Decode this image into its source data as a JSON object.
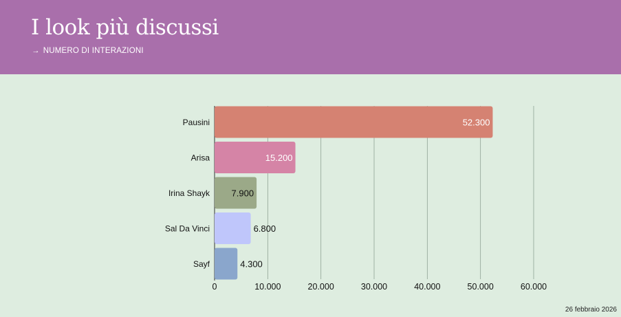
{
  "header": {
    "title": "I look più discussi",
    "subtitle_arrow": "→",
    "subtitle": "NUMERO DI INTERAZIONI"
  },
  "footer": {
    "date": "26 febbraio 2026"
  },
  "colors": {
    "header_bg": "#a96fab",
    "plot_bg": "#deede0",
    "grid": "#8fa394"
  },
  "chart_data": {
    "type": "bar",
    "orientation": "horizontal",
    "categories": [
      "Pausini",
      "Arisa",
      "Irina Shayk",
      "Sal Da Vinci",
      "Sayf"
    ],
    "values": [
      52300,
      15200,
      7900,
      6800,
      4300
    ],
    "value_labels": [
      "52.300",
      "15.200",
      "7.900",
      "6.800",
      "4.300"
    ],
    "bar_colors": [
      "#d58272",
      "#d584a6",
      "#9ba988",
      "#bfc6fb",
      "#8aa6cc"
    ],
    "xlim": [
      0,
      60000
    ],
    "xticks": [
      0,
      10000,
      20000,
      30000,
      40000,
      50000,
      60000
    ],
    "xtick_labels": [
      "0",
      "10.000",
      "20.000",
      "30.000",
      "40.000",
      "50.000",
      "60.000"
    ],
    "grid": true,
    "legend": "none"
  }
}
